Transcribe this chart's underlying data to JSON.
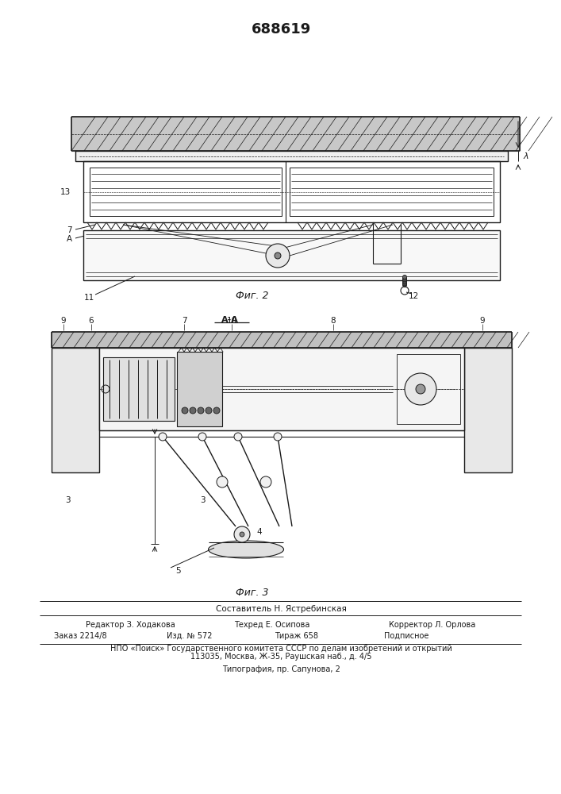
{
  "title": "688619",
  "bg_color": "#ffffff",
  "fig2_caption": "Фиг. 2",
  "fig3_caption": "Фиг. 3",
  "footer_line1": "Составитель Н. Ястребинская",
  "footer_line2_left": "Редактор З. Ходакова",
  "footer_line2_mid": "Техред Е. Осипова",
  "footer_line2_right": "Корректор Л. Орлова",
  "footer_line3_col1": "Заказ 2214/8",
  "footer_line3_col2": "Изд. № 572",
  "footer_line3_col3": "Тираж 658",
  "footer_line3_col4": "Подписное",
  "footer_line4": "НПО «Поиск» Государственного комитета СССР по делам изобретений и открытий",
  "footer_line5": "113035, Москва, Ж-35, Раушская наб., д. 4/5",
  "footer_line6": "Типография, пр. Сапунова, 2",
  "lc": "#1a1a1a"
}
